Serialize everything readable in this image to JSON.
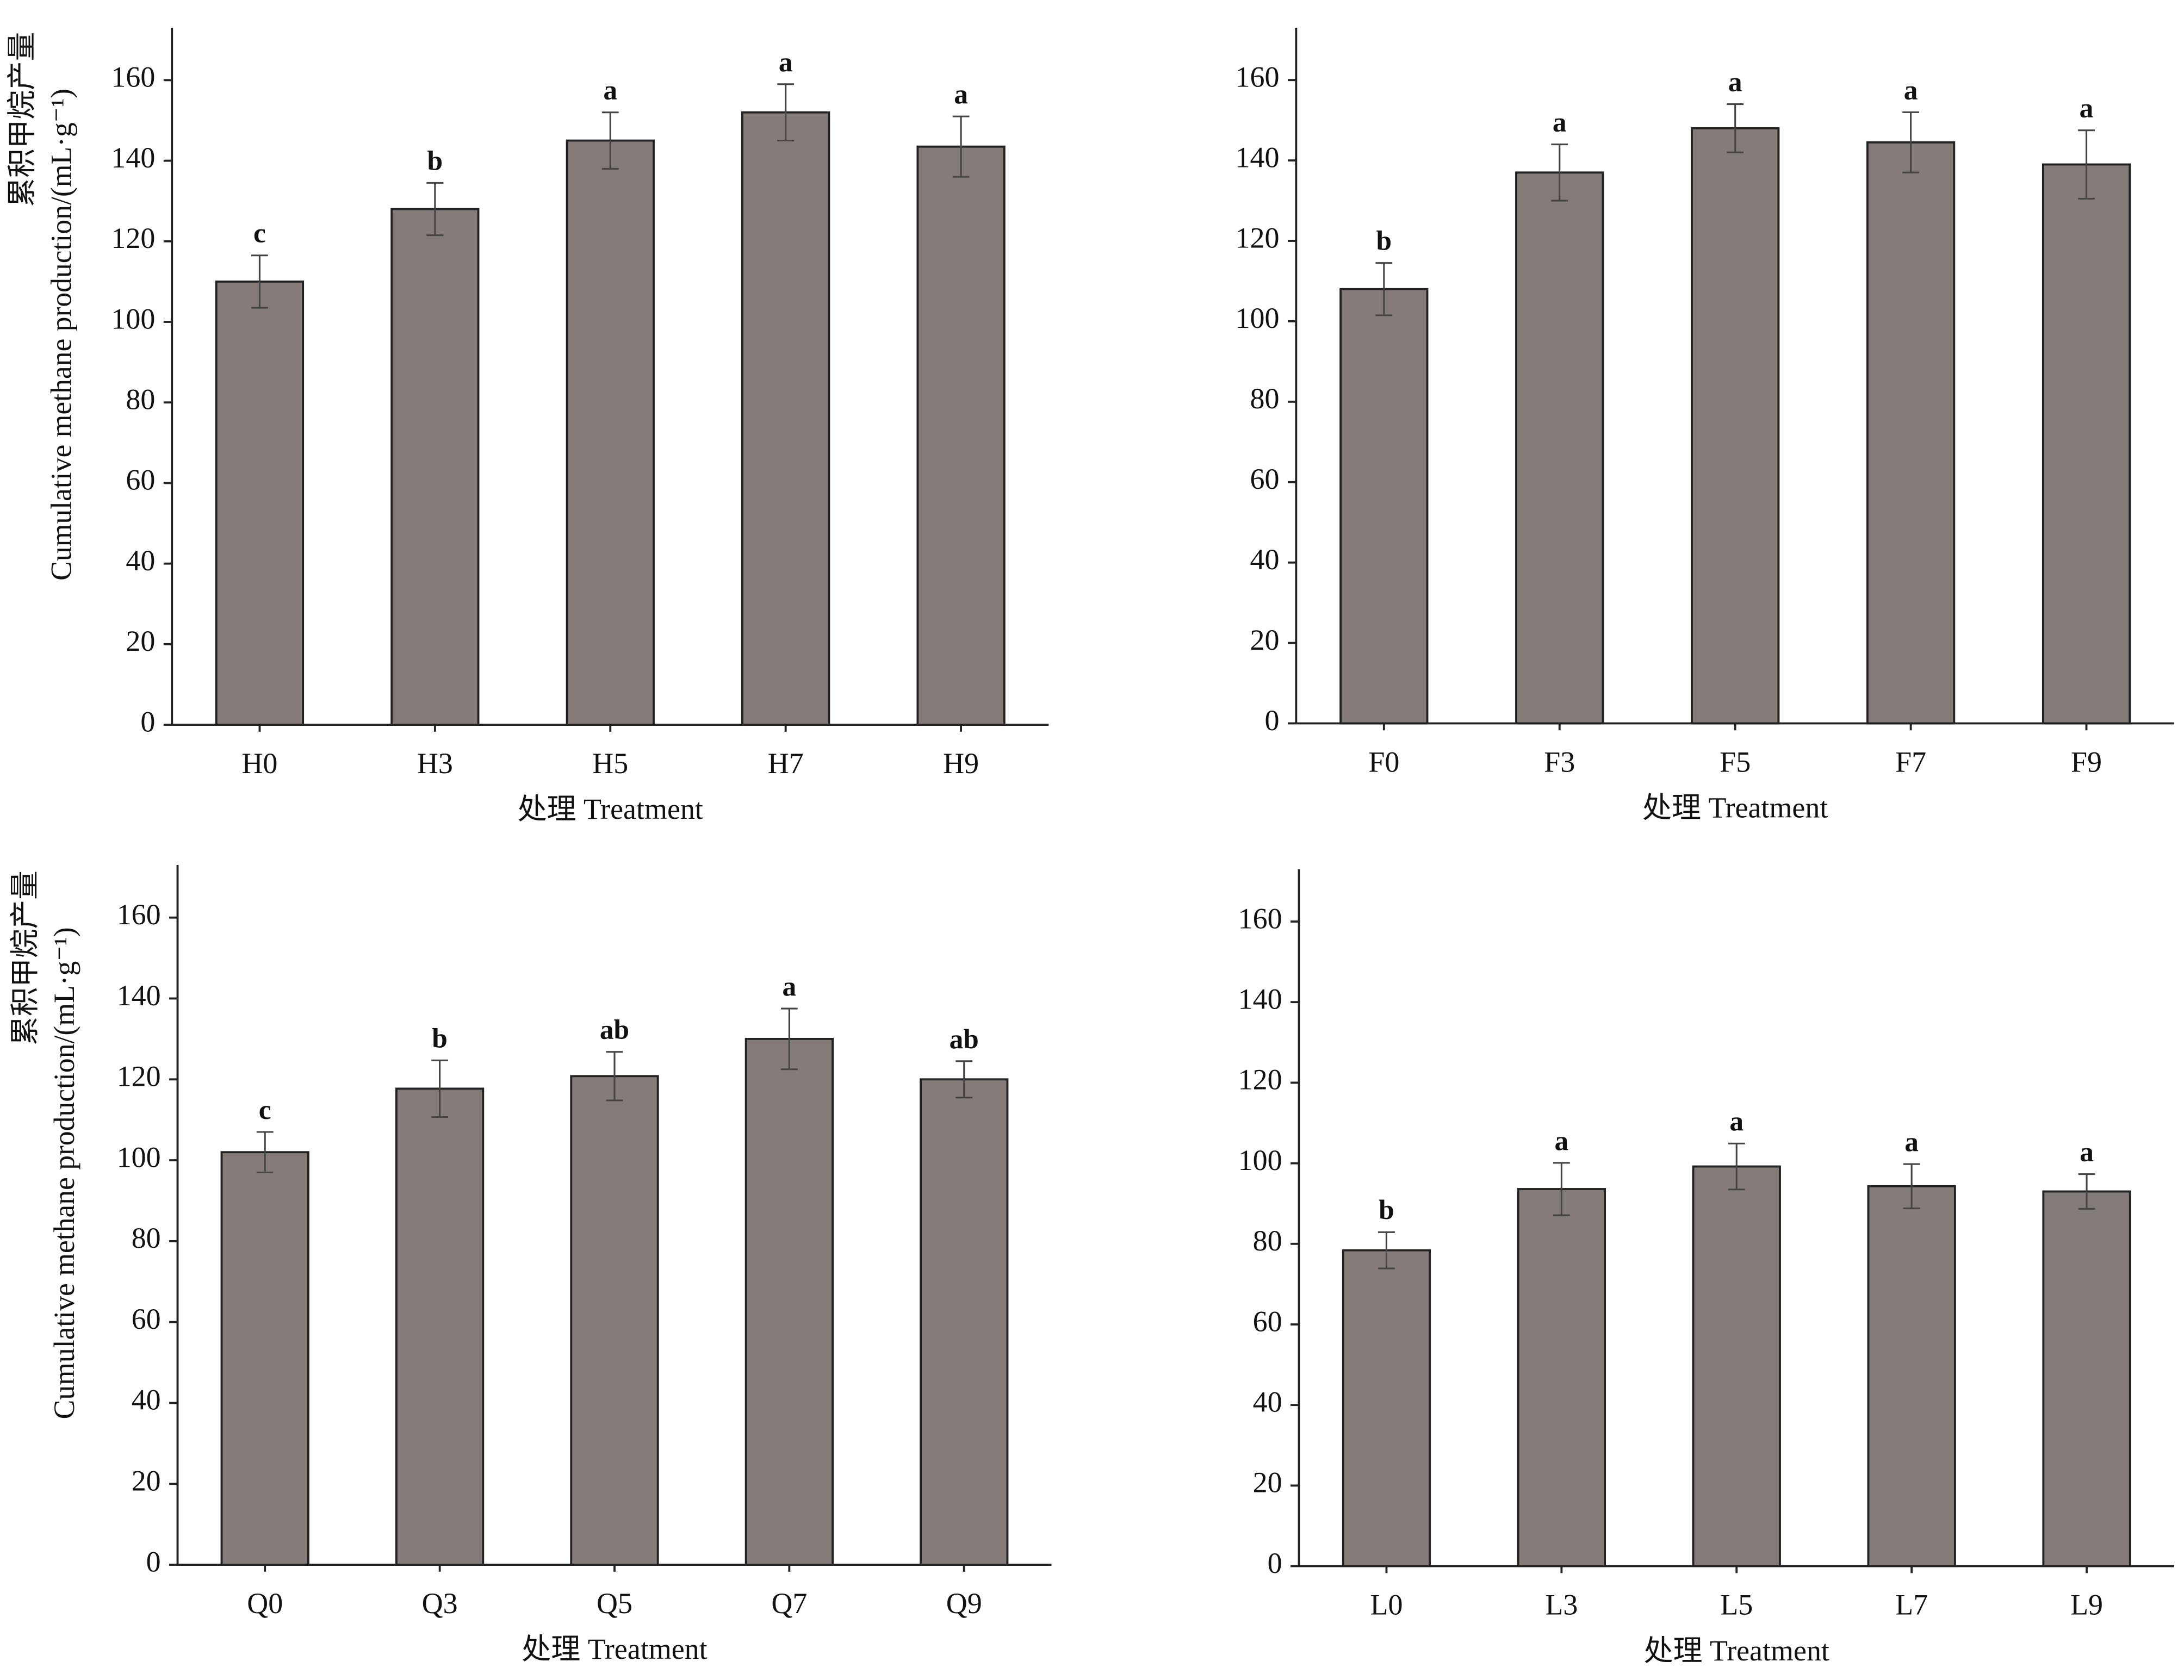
{
  "chart_data": [
    {
      "type": "bar",
      "y_label": [
        "累积甲烷产量",
        "Cumulative methane production/(mL·g⁻¹)"
      ],
      "x_label": "处理 Treatment",
      "categories": [
        "H0",
        "H3",
        "H5",
        "H7",
        "H9"
      ],
      "values": [
        110,
        128,
        145,
        152,
        143.5
      ],
      "errors": [
        6.5,
        6.5,
        7,
        7,
        7.5
      ],
      "letters": [
        "c",
        "b",
        "a",
        "a",
        "a"
      ],
      "color": "#857c7a",
      "ylim": [
        0,
        173
      ],
      "yticks": [
        0,
        20,
        40,
        60,
        80,
        100,
        120,
        140,
        160
      ]
    },
    {
      "type": "bar",
      "x_label": "处理 Treatment",
      "categories": [
        "F0",
        "F3",
        "F5",
        "F7",
        "F9"
      ],
      "values": [
        108,
        137,
        148,
        144.5,
        139
      ],
      "errors": [
        6.5,
        7,
        6,
        7.5,
        8.5
      ],
      "letters": [
        "b",
        "a",
        "a",
        "a",
        "a"
      ],
      "color": "#857c7a",
      "ylim": [
        0,
        173
      ],
      "yticks": [
        0,
        20,
        40,
        60,
        80,
        100,
        120,
        140,
        160
      ]
    },
    {
      "type": "bar",
      "y_label": [
        "累积甲烷产量",
        "Cumulative methane production/(mL·g⁻¹)"
      ],
      "x_label": "处理 Treatment",
      "categories": [
        "Q0",
        "Q3",
        "Q5",
        "Q7",
        "Q9"
      ],
      "values": [
        102,
        117.7,
        120.8,
        130,
        120
      ],
      "errors": [
        5,
        7,
        6,
        7.5,
        4.5
      ],
      "letters": [
        "c",
        "b",
        "ab",
        "a",
        "ab"
      ],
      "color": "#857c7a",
      "ylim": [
        0,
        173
      ],
      "yticks": [
        0,
        20,
        40,
        60,
        80,
        100,
        120,
        140,
        160
      ]
    },
    {
      "type": "bar",
      "x_label": "处理 Treatment",
      "categories": [
        "L0",
        "L3",
        "L5",
        "L7",
        "L9"
      ],
      "values": [
        78.4,
        93.6,
        99.2,
        94.3,
        93
      ],
      "errors": [
        4.5,
        6.5,
        5.7,
        5.5,
        4.3
      ],
      "letters": [
        "b",
        "a",
        "a",
        "a",
        "a"
      ],
      "color": "#857c7a",
      "ylim": [
        0,
        173
      ],
      "yticks": [
        0,
        20,
        40,
        60,
        80,
        100,
        120,
        140,
        160
      ]
    }
  ]
}
